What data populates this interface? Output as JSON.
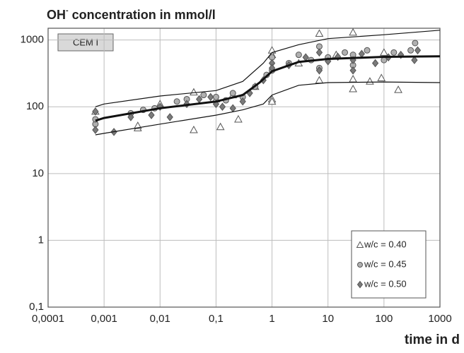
{
  "chart_data": {
    "type": "scatter",
    "title": {
      "base": "OH",
      "superscript": "-",
      "rest": "concentration in mmol/l"
    },
    "x_label": "time in d",
    "annotation": "CEM I",
    "x_log": true,
    "y_log": true,
    "grid": true,
    "legend": "lower right",
    "xlim": [
      0.0001,
      1000
    ],
    "ylim": [
      0.1,
      1500
    ],
    "xticks": [
      {
        "value": 0.0001,
        "label": "0,0001"
      },
      {
        "value": 0.001,
        "label": "0,001"
      },
      {
        "value": 0.01,
        "label": "0,01"
      },
      {
        "value": 0.1,
        "label": "0,1"
      },
      1,
      10,
      100,
      1000
    ],
    "yticks": [
      {
        "value": 0.1,
        "label": "0,1"
      },
      1,
      10,
      100,
      1000
    ],
    "series": [
      {
        "name": "w/c = 0.40",
        "marker": "triangle",
        "color": "#ffffff",
        "x": [
          0.0007,
          0.004,
          0.004,
          0.01,
          0.04,
          0.04,
          0.12,
          0.1,
          0.25,
          0.2,
          0.5,
          1,
          1,
          1,
          1,
          3,
          7,
          7,
          14,
          28,
          28,
          28,
          56,
          90,
          100,
          180
        ],
        "values": [
          85,
          48,
          52,
          110,
          45,
          165,
          50,
          130,
          65,
          150,
          200,
          130,
          120,
          600,
          700,
          450,
          1250,
          250,
          600,
          1300,
          260,
          185,
          240,
          270,
          650,
          180
        ]
      },
      {
        "name": "w/c = 0.45",
        "marker": "circle",
        "color": "#b0b0b0",
        "x": [
          0.0007,
          0.0007,
          0.003,
          0.005,
          0.008,
          0.02,
          0.03,
          0.06,
          0.1,
          0.15,
          0.2,
          0.3,
          0.5,
          0.8,
          1,
          1,
          2,
          3,
          5,
          7,
          7,
          10,
          20,
          28,
          28,
          50,
          100,
          150,
          300,
          360
        ],
        "values": [
          55,
          65,
          80,
          90,
          95,
          120,
          130,
          150,
          140,
          125,
          160,
          140,
          200,
          300,
          550,
          350,
          450,
          600,
          500,
          800,
          380,
          550,
          650,
          600,
          420,
          700,
          500,
          650,
          700,
          900
        ]
      },
      {
        "name": "w/c = 0.50",
        "marker": "diamond",
        "color": "#7a7a7a",
        "x": [
          0.0007,
          0.0007,
          0.0015,
          0.003,
          0.007,
          0.01,
          0.015,
          0.03,
          0.05,
          0.08,
          0.1,
          0.13,
          0.2,
          0.3,
          0.4,
          0.7,
          1,
          1,
          2,
          4,
          7,
          7,
          10,
          15,
          28,
          28,
          40,
          70,
          120,
          200,
          350,
          400
        ],
        "values": [
          45,
          85,
          42,
          70,
          75,
          100,
          70,
          110,
          130,
          140,
          110,
          100,
          95,
          120,
          160,
          250,
          450,
          380,
          420,
          550,
          350,
          650,
          480,
          560,
          500,
          350,
          620,
          450,
          550,
          600,
          500,
          700
        ]
      }
    ],
    "curves": [
      {
        "width": 3,
        "x": [
          0.0007,
          0.001,
          0.01,
          0.1,
          0.3,
          0.6,
          1,
          3,
          10,
          100,
          1000
        ],
        "values": [
          62,
          68,
          95,
          120,
          150,
          230,
          340,
          470,
          520,
          560,
          570
        ]
      },
      {
        "width": 1.2,
        "x": [
          0.0007,
          0.001,
          0.01,
          0.1,
          0.3,
          0.7,
          1,
          3,
          10,
          100,
          1000
        ],
        "values": [
          100,
          110,
          145,
          175,
          240,
          450,
          650,
          850,
          1050,
          1200,
          1400
        ]
      },
      {
        "width": 1.2,
        "x": [
          0.0007,
          0.001,
          0.01,
          0.1,
          0.3,
          0.7,
          1,
          3,
          10,
          100,
          1000
        ],
        "values": [
          38,
          40,
          55,
          75,
          90,
          110,
          150,
          210,
          230,
          235,
          230
        ]
      }
    ]
  }
}
